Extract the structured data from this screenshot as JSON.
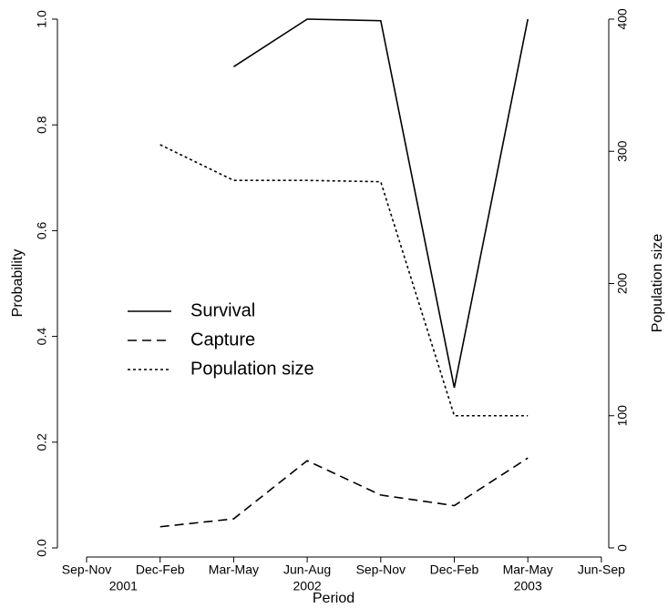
{
  "chart_data": {
    "type": "line",
    "x_label": "Period",
    "y_label": "Probability",
    "y2_label": "Population size",
    "categories": [
      "Sep-Nov",
      "Dec-Feb",
      "Mar-May",
      "Jun-Aug",
      "Sep-Nov",
      "Dec-Feb",
      "Mar-May",
      "Jun-Sep"
    ],
    "annotations": [
      "2001",
      "2002",
      "2003"
    ],
    "ylim": [
      0,
      1
    ],
    "yticks": [
      {
        "value": 0,
        "label": "0.0"
      },
      0.2,
      0.4,
      0.6,
      0.8,
      {
        "value": 1,
        "label": "1.0"
      }
    ],
    "y2lim": [
      0,
      400
    ],
    "y2ticks": [
      0,
      100,
      200,
      300,
      400
    ],
    "legend": "center-left",
    "series": [
      {
        "name": "Survival",
        "color": "#000000",
        "dash": "solid",
        "values": [
          null,
          null,
          0.91,
          1.0,
          0.997,
          0.303,
          1.0,
          null
        ]
      },
      {
        "name": "Capture",
        "color": "#000000",
        "dash": "dashed",
        "values": [
          null,
          0.04,
          0.055,
          0.165,
          0.1,
          0.08,
          0.17,
          null
        ]
      },
      {
        "name": "Population size",
        "color": "#000000",
        "dash": "dotted",
        "axis": "y2",
        "values": [
          null,
          305,
          278,
          278,
          277,
          100,
          100,
          null
        ]
      }
    ]
  }
}
